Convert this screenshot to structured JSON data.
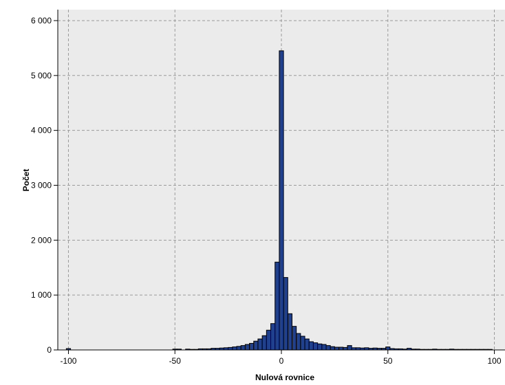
{
  "chart_data": {
    "type": "bar",
    "title": "",
    "xlabel": "Nulová rovnice",
    "ylabel": "Počet",
    "xlim": [
      -105,
      105
    ],
    "ylim": [
      0,
      6200
    ],
    "xticks": [
      -100,
      -50,
      0,
      50,
      100
    ],
    "xtick_labels": [
      "-100",
      "-50",
      "0",
      "50",
      "100"
    ],
    "yticks": [
      0,
      1000,
      2000,
      3000,
      4000,
      5000,
      6000
    ],
    "ytick_labels": [
      "0",
      "1 000",
      "2 000",
      "3 000",
      "4 000",
      "5 000",
      "6 000"
    ],
    "grid": true,
    "bin_width": 2,
    "series": [
      {
        "name": "",
        "x": [
          -100,
          -50,
          -48,
          -44,
          -42,
          -40,
          -38,
          -36,
          -34,
          -32,
          -30,
          -28,
          -26,
          -24,
          -22,
          -20,
          -18,
          -16,
          -14,
          -12,
          -10,
          -8,
          -6,
          -4,
          -2,
          0,
          2,
          4,
          6,
          8,
          10,
          12,
          14,
          16,
          18,
          20,
          22,
          24,
          26,
          28,
          30,
          32,
          34,
          36,
          38,
          40,
          42,
          44,
          46,
          48,
          50,
          52,
          54,
          56,
          58,
          60,
          62,
          64,
          66,
          68,
          70,
          72,
          74,
          76,
          78,
          80,
          82,
          84,
          86,
          88,
          90,
          92,
          94,
          96,
          98
        ],
        "values": [
          25,
          15,
          15,
          15,
          10,
          10,
          20,
          20,
          20,
          30,
          30,
          35,
          40,
          45,
          55,
          65,
          80,
          100,
          120,
          160,
          200,
          260,
          360,
          480,
          1600,
          5450,
          1320,
          660,
          430,
          300,
          250,
          200,
          150,
          130,
          110,
          100,
          80,
          60,
          50,
          50,
          45,
          80,
          40,
          40,
          35,
          40,
          30,
          35,
          30,
          30,
          55,
          25,
          20,
          20,
          15,
          30,
          15,
          15,
          10,
          10,
          10,
          15,
          10,
          10,
          10,
          15,
          10,
          10,
          10,
          10,
          10,
          10,
          10,
          10,
          10
        ],
        "color": "#1f3f8f"
      }
    ]
  }
}
